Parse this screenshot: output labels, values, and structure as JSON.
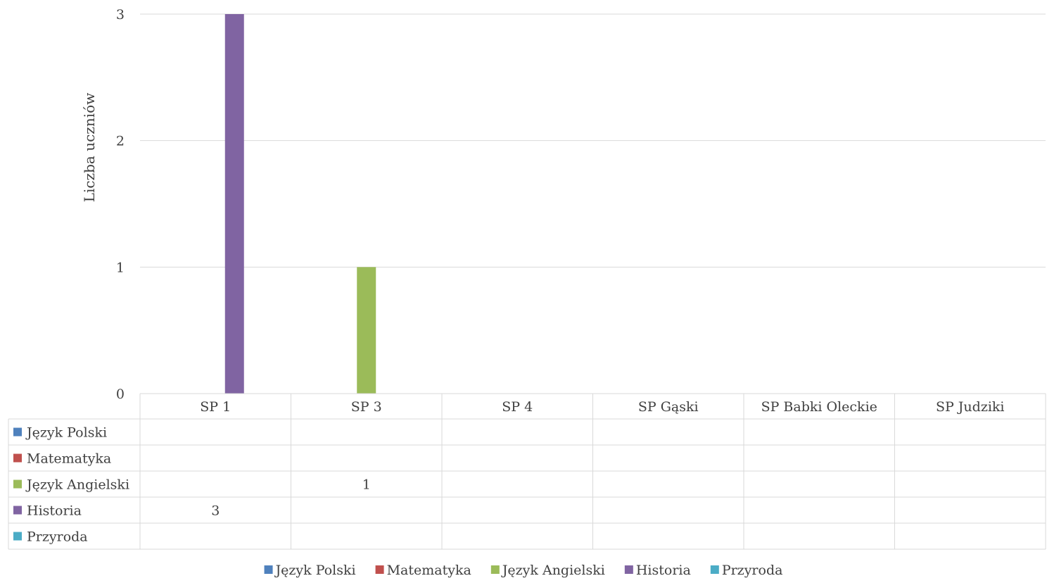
{
  "chart_data": {
    "type": "bar",
    "title": "",
    "xlabel": "",
    "ylabel": "Liczba uczniów",
    "ylim": [
      0,
      3
    ],
    "yticks": [
      0,
      1,
      2,
      3
    ],
    "grid": true,
    "legend_position": "bottom",
    "data_table": true,
    "categories": [
      "SP 1",
      "SP 3",
      "SP 4",
      "SP Gąski",
      "SP Babki Oleckie",
      "SP Judziki"
    ],
    "series": [
      {
        "name": "Język Polski",
        "color": "#4F81BD",
        "values": [
          null,
          null,
          null,
          null,
          null,
          null
        ]
      },
      {
        "name": "Matematyka",
        "color": "#C0504D",
        "values": [
          null,
          null,
          null,
          null,
          null,
          null
        ]
      },
      {
        "name": "Język Angielski",
        "color": "#9BBB59",
        "values": [
          null,
          1,
          null,
          null,
          null,
          null
        ]
      },
      {
        "name": "Historia",
        "color": "#8064A2",
        "values": [
          3,
          null,
          null,
          null,
          null,
          null
        ]
      },
      {
        "name": "Przyroda",
        "color": "#4BACC6",
        "values": [
          null,
          null,
          null,
          null,
          null,
          null
        ]
      }
    ]
  }
}
